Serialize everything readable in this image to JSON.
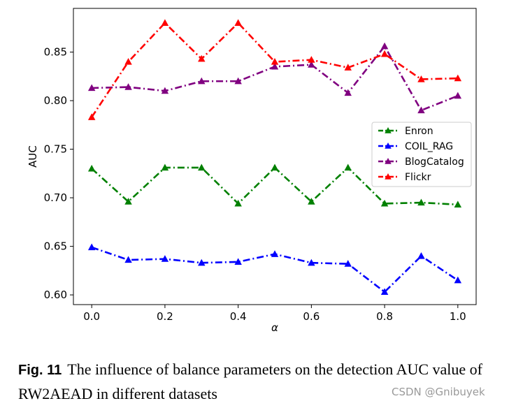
{
  "chart_data": {
    "type": "line",
    "title": "",
    "xlabel": "α",
    "ylabel": "AUC",
    "x": [
      0.0,
      0.1,
      0.2,
      0.3,
      0.4,
      0.5,
      0.6,
      0.7,
      0.8,
      0.9,
      1.0
    ],
    "xlim": [
      -0.05,
      1.05
    ],
    "ylim": [
      0.59,
      0.895
    ],
    "xticks": [
      0.0,
      0.2,
      0.4,
      0.6,
      0.8,
      1.0
    ],
    "xtick_labels": [
      "0.0",
      "0.2",
      "0.4",
      "0.6",
      "0.8",
      "1.0"
    ],
    "yticks": [
      0.6,
      0.65,
      0.7,
      0.75,
      0.8,
      0.85
    ],
    "ytick_labels": [
      "0.60",
      "0.65",
      "0.70",
      "0.75",
      "0.80",
      "0.85"
    ],
    "grid": false,
    "legend_position": "center-right",
    "line_style": "dash-dot",
    "marker": "triangle-up",
    "series": [
      {
        "name": "Enron",
        "color": "#008000",
        "values": [
          0.73,
          0.696,
          0.731,
          0.731,
          0.694,
          0.731,
          0.696,
          0.731,
          0.694,
          0.695,
          0.693
        ]
      },
      {
        "name": "COIL_RAG",
        "color": "#0000ff",
        "values": [
          0.649,
          0.636,
          0.637,
          0.633,
          0.634,
          0.642,
          0.633,
          0.632,
          0.603,
          0.64,
          0.615
        ]
      },
      {
        "name": "BlogCatalog",
        "color": "#800080",
        "values": [
          0.813,
          0.814,
          0.81,
          0.82,
          0.82,
          0.835,
          0.837,
          0.808,
          0.856,
          0.79,
          0.805
        ]
      },
      {
        "name": "Flickr",
        "color": "#ff0000",
        "values": [
          0.783,
          0.84,
          0.88,
          0.843,
          0.88,
          0.84,
          0.842,
          0.834,
          0.848,
          0.822,
          0.823
        ]
      }
    ]
  },
  "caption": {
    "fig_label": "Fig. 11",
    "text": "The influence of balance parameters on the detection AUC value of RW2AEAD in different datasets"
  },
  "watermark": "CSDN @Gnibuyek"
}
